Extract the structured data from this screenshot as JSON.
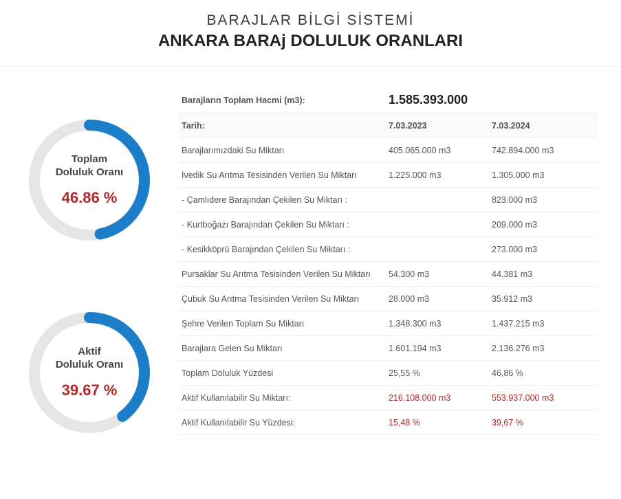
{
  "header": {
    "subtitle": "BARAJLAR BİLGİ SİSTEMİ",
    "title": "ANKARA BARAj DOLULUK ORANLARI"
  },
  "gauges": [
    {
      "name_line1": "Toplam",
      "name_line2": "Doluluk Oranı",
      "value_text": "46.86 %",
      "percent": 46.86,
      "track_color": "#e5e5e5",
      "arc_color": "#1c7ec9",
      "value_color": "#b02828",
      "stroke_width": 16
    },
    {
      "name_line1": "Aktif",
      "name_line2": "Doluluk Oranı",
      "value_text": "39.67 %",
      "percent": 39.67,
      "track_color": "#e5e5e5",
      "arc_color": "#1c7ec9",
      "value_color": "#b02828",
      "stroke_width": 16
    }
  ],
  "table": {
    "total_label": "Barajların Toplam Hacmi (m3):",
    "total_value": "1.585.393.000",
    "date_label": "Tarih:",
    "date1": "7.03.2023",
    "date2": "7.03.2024",
    "rows": [
      {
        "label": "Barajlarımızdaki Su Miktarı",
        "c1": "405.065.000 m3",
        "c2": "742.894.000 m3",
        "red": false
      },
      {
        "label": "İvedik Su Arıtma Tesisinden Verilen Su Miktarı",
        "c1": "1.225.000 m3",
        "c2": "1.305.000 m3",
        "red": false
      },
      {
        "label": "- Çamlıdere Barajından Çekilen Su Miktarı :",
        "c1": "",
        "c2": "823.000 m3",
        "red": false
      },
      {
        "label": "- Kurtboğazı Barajından Çekilen Su Miktarı :",
        "c1": "",
        "c2": "209.000 m3",
        "red": false
      },
      {
        "label": "- Kesikköprü Barajından Çekilen Su Miktarı :",
        "c1": "",
        "c2": "273.000 m3",
        "red": false
      },
      {
        "label": "Pursaklar Su Arıtma Tesisinden Verilen Su Miktarı",
        "c1": "54.300 m3",
        "c2": "44.381 m3",
        "red": false
      },
      {
        "label": "Çubuk Su Arıtma Tesisinden Verilen Su Miktarı",
        "c1": "28.000 m3",
        "c2": "35.912 m3",
        "red": false
      },
      {
        "label": "Şehre Verilen Toplam Su Miktarı",
        "c1": "1.348.300 m3",
        "c2": "1.437.215 m3",
        "red": false
      },
      {
        "label": "Barajlara Gelen Su Miktarı",
        "c1": "1.601.194 m3",
        "c2": "2.136.276 m3",
        "red": false
      },
      {
        "label": "Toplam Doluluk Yüzdesi",
        "c1": "25,55 %",
        "c2": "46,86 %",
        "red": false
      },
      {
        "label": "Aktif Kullanılabilir Su Miktarı:",
        "c1": "216.108.000 m3",
        "c2": "553.937.000 m3",
        "red": true
      },
      {
        "label": "Aktif Kullanılabilir Su Yüzdesi:",
        "c1": "15,48 %",
        "c2": "39,67 %",
        "red": true
      }
    ]
  }
}
